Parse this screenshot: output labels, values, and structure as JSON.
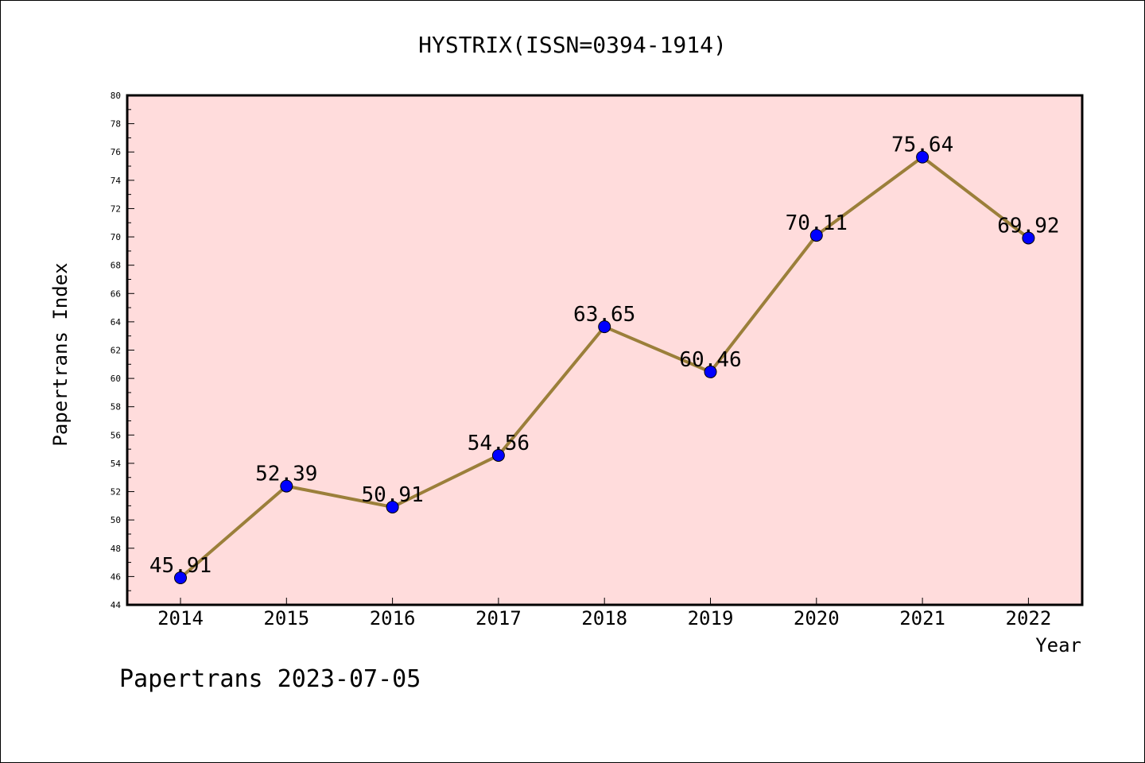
{
  "chart_data": {
    "type": "line",
    "title": "HYSTRIX(ISSN=0394-1914)",
    "xlabel": "Year",
    "ylabel": "Papertrans Index",
    "x": [
      "2014",
      "2015",
      "2016",
      "2017",
      "2018",
      "2019",
      "2020",
      "2021",
      "2022"
    ],
    "series": [
      {
        "values": [
          45.91,
          52.39,
          50.91,
          54.56,
          63.65,
          60.46,
          70.11,
          75.64,
          69.92
        ],
        "labels": [
          "45.91",
          "52.39",
          "50.91",
          "54.56",
          "63.65",
          "60.46",
          "70.11",
          "75.64",
          "69.92"
        ]
      }
    ],
    "ylim": [
      44,
      80
    ],
    "yticks": [
      "44",
      "46",
      "48",
      "50",
      "52",
      "54",
      "56",
      "58",
      "60",
      "62",
      "64",
      "66",
      "68",
      "70",
      "72",
      "74",
      "76",
      "78",
      "80"
    ],
    "grid": false,
    "colors": {
      "plot_background": "#ffdcdc",
      "line": "#9b7f3a",
      "marker": "#0000ff"
    }
  },
  "footer": "Papertrans 2023-07-05"
}
